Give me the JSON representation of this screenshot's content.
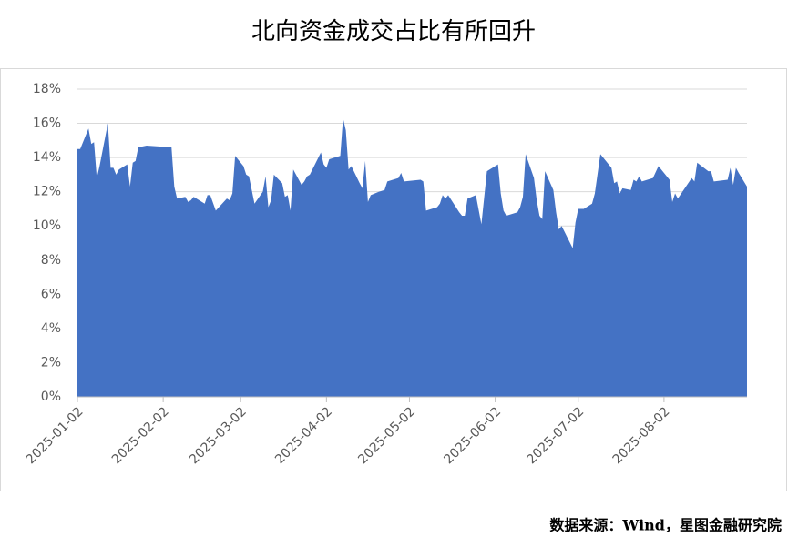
{
  "chart_data": {
    "type": "area",
    "title": "北向资金成交占比有所回升",
    "source": "数据来源：Wind，星图金融研究院",
    "color": "#4472c4",
    "grid": true,
    "xlim": [
      "2025-01-02",
      "2025-09-01"
    ],
    "xticks": [
      "2025-01-02",
      "2025-02-02",
      "2025-03-02",
      "2025-04-02",
      "2025-05-02",
      "2025-06-02",
      "2025-07-02",
      "2025-08-02"
    ],
    "ylim": [
      0,
      18
    ],
    "yticks": [
      {
        "value": 0,
        "label": "0%"
      },
      {
        "value": 2,
        "label": "2%"
      },
      {
        "value": 4,
        "label": "4%"
      },
      {
        "value": 6,
        "label": "6%"
      },
      {
        "value": 8,
        "label": "8%"
      },
      {
        "value": 10,
        "label": "10%"
      },
      {
        "value": 12,
        "label": "12%"
      },
      {
        "value": 14,
        "label": "14%"
      },
      {
        "value": 16,
        "label": "16%"
      },
      {
        "value": 18,
        "label": "18%"
      }
    ],
    "x": [
      "2025-01-02",
      "2025-01-03",
      "2025-01-06",
      "2025-01-07",
      "2025-01-08",
      "2025-01-09",
      "2025-01-10",
      "2025-01-13",
      "2025-01-14",
      "2025-01-15",
      "2025-01-16",
      "2025-01-17",
      "2025-01-20",
      "2025-01-21",
      "2025-01-22",
      "2025-01-23",
      "2025-01-24",
      "2025-01-27",
      "2025-02-05",
      "2025-02-06",
      "2025-02-07",
      "2025-02-10",
      "2025-02-11",
      "2025-02-12",
      "2025-02-13",
      "2025-02-17",
      "2025-02-18",
      "2025-02-19",
      "2025-02-21",
      "2025-02-25",
      "2025-02-26",
      "2025-02-27",
      "2025-02-28",
      "2025-03-03",
      "2025-03-04",
      "2025-03-05",
      "2025-03-07",
      "2025-03-10",
      "2025-03-11",
      "2025-03-12",
      "2025-03-13",
      "2025-03-14",
      "2025-03-17",
      "2025-03-18",
      "2025-03-19",
      "2025-03-20",
      "2025-03-21",
      "2025-03-24",
      "2025-03-25",
      "2025-03-26",
      "2025-03-27",
      "2025-03-31",
      "2025-04-01",
      "2025-04-02",
      "2025-04-03",
      "2025-04-07",
      "2025-04-08",
      "2025-04-09",
      "2025-04-10",
      "2025-04-11",
      "2025-04-14",
      "2025-04-15",
      "2025-04-16",
      "2025-04-17",
      "2025-04-18",
      "2025-04-21",
      "2025-04-23",
      "2025-04-24",
      "2025-04-28",
      "2025-04-29",
      "2025-04-30",
      "2025-05-06",
      "2025-05-07",
      "2025-05-08",
      "2025-05-12",
      "2025-05-13",
      "2025-05-14",
      "2025-05-15",
      "2025-05-16",
      "2025-05-20",
      "2025-05-21",
      "2025-05-22",
      "2025-05-23",
      "2025-05-26",
      "2025-05-28",
      "2025-05-30",
      "2025-06-03",
      "2025-06-04",
      "2025-06-05",
      "2025-06-06",
      "2025-06-10",
      "2025-06-11",
      "2025-06-12",
      "2025-06-13",
      "2025-06-16",
      "2025-06-17",
      "2025-06-18",
      "2025-06-19",
      "2025-06-20",
      "2025-06-23",
      "2025-06-24",
      "2025-06-25",
      "2025-06-26",
      "2025-06-30",
      "2025-07-01",
      "2025-07-02",
      "2025-07-04",
      "2025-07-07",
      "2025-07-08",
      "2025-07-10",
      "2025-07-14",
      "2025-07-15",
      "2025-07-16",
      "2025-07-17",
      "2025-07-18",
      "2025-07-21",
      "2025-07-22",
      "2025-07-23",
      "2025-07-24",
      "2025-07-25",
      "2025-07-29",
      "2025-07-31",
      "2025-08-04",
      "2025-08-05",
      "2025-08-06",
      "2025-08-07",
      "2025-08-12",
      "2025-08-13",
      "2025-08-14",
      "2025-08-18",
      "2025-08-19",
      "2025-08-20",
      "2025-08-25",
      "2025-08-26",
      "2025-08-27",
      "2025-08-28",
      "2025-08-29",
      "2025-09-01"
    ],
    "values": [
      14.5,
      14.5,
      15.7,
      14.8,
      14.9,
      12.8,
      13.5,
      16.0,
      13.4,
      13.4,
      13.0,
      13.3,
      13.6,
      12.3,
      13.7,
      13.8,
      14.6,
      14.7,
      14.6,
      12.3,
      11.6,
      11.7,
      11.4,
      11.5,
      11.7,
      11.3,
      11.8,
      11.8,
      10.9,
      11.6,
      11.5,
      11.9,
      14.1,
      13.5,
      13.0,
      12.9,
      11.3,
      12.0,
      12.9,
      11.1,
      11.5,
      13.0,
      12.5,
      11.7,
      11.8,
      10.9,
      13.3,
      12.4,
      12.6,
      12.9,
      13.0,
      14.3,
      13.6,
      13.4,
      13.9,
      14.1,
      16.3,
      15.6,
      13.3,
      13.5,
      12.5,
      12.2,
      13.8,
      11.4,
      11.8,
      12.0,
      12.1,
      12.6,
      12.8,
      13.1,
      12.6,
      12.7,
      12.6,
      10.9,
      11.1,
      11.3,
      11.8,
      11.6,
      11.8,
      10.8,
      10.6,
      10.6,
      11.6,
      11.8,
      10.1,
      13.2,
      13.6,
      11.9,
      10.9,
      10.6,
      10.8,
      11.1,
      11.7,
      14.2,
      12.8,
      11.5,
      10.6,
      10.4,
      13.2,
      12.1,
      10.8,
      9.8,
      10.0,
      8.7,
      10.2,
      11.0,
      11.0,
      11.3,
      11.9,
      14.2,
      13.4,
      12.5,
      12.6,
      11.9,
      12.2,
      12.1,
      12.7,
      12.6,
      12.9,
      12.6,
      12.8,
      13.5,
      12.7,
      11.4,
      11.9,
      11.6,
      12.8,
      12.6,
      13.7,
      13.2,
      13.2,
      12.6,
      12.7,
      13.4,
      12.4,
      13.4,
      13.1,
      12.3
    ]
  }
}
